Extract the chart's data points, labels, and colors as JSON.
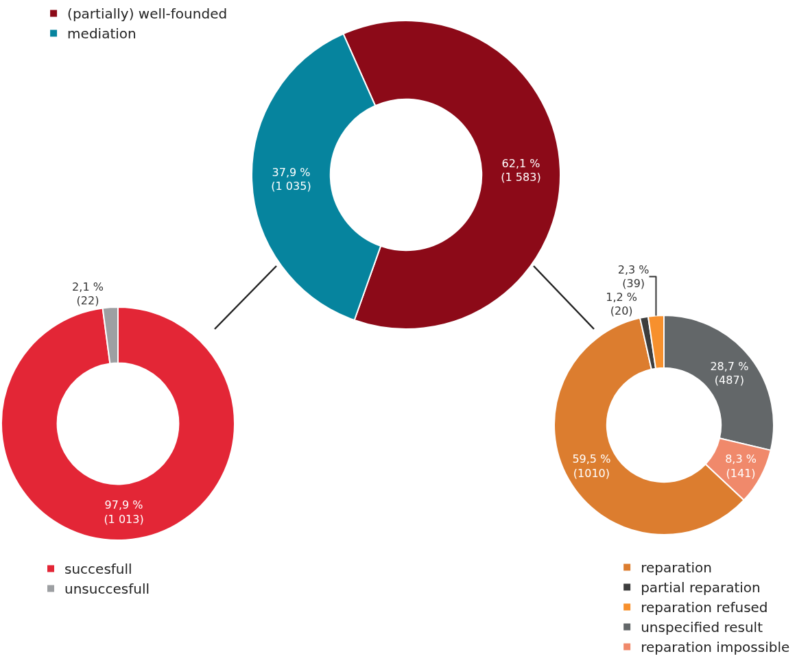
{
  "chart_data": [
    {
      "type": "donut",
      "categories": [
        "(partially) well-founded",
        "mediation"
      ],
      "values": [
        62.1,
        37.9
      ],
      "colors": [
        "#8c0a18",
        "#06849e"
      ],
      "value_labels": [
        "62,1 %\n(1 583)",
        "37,9 %\n(1 035)"
      ],
      "legend": "top left"
    },
    {
      "type": "donut",
      "categories": [
        "succesfull",
        "unsuccesfull"
      ],
      "values": [
        97.9,
        2.1
      ],
      "colors": [
        "#e32636",
        "#9d9fa2"
      ],
      "value_labels": [
        "97,9 %\n(1 013)",
        "2,1 %\n(22)"
      ],
      "legend": "bottom left"
    },
    {
      "type": "donut",
      "categories": [
        "reparation",
        "partial reparation",
        "reparation refused",
        "unspecified result",
        "reparation impossible"
      ],
      "values": [
        59.5,
        1.2,
        2.3,
        28.7,
        8.3
      ],
      "colors": [
        "#dc7d2f",
        "#3d3d3d",
        "#f7902d",
        "#636769",
        "#f0896b"
      ],
      "value_labels": [
        "59,5 %\n(1010)",
        "1,2 %\n(20)",
        "2,3 %\n(39)",
        "28,7 %\n(487)",
        "8,3 %\n(141)"
      ],
      "legend": "bottom right"
    }
  ]
}
